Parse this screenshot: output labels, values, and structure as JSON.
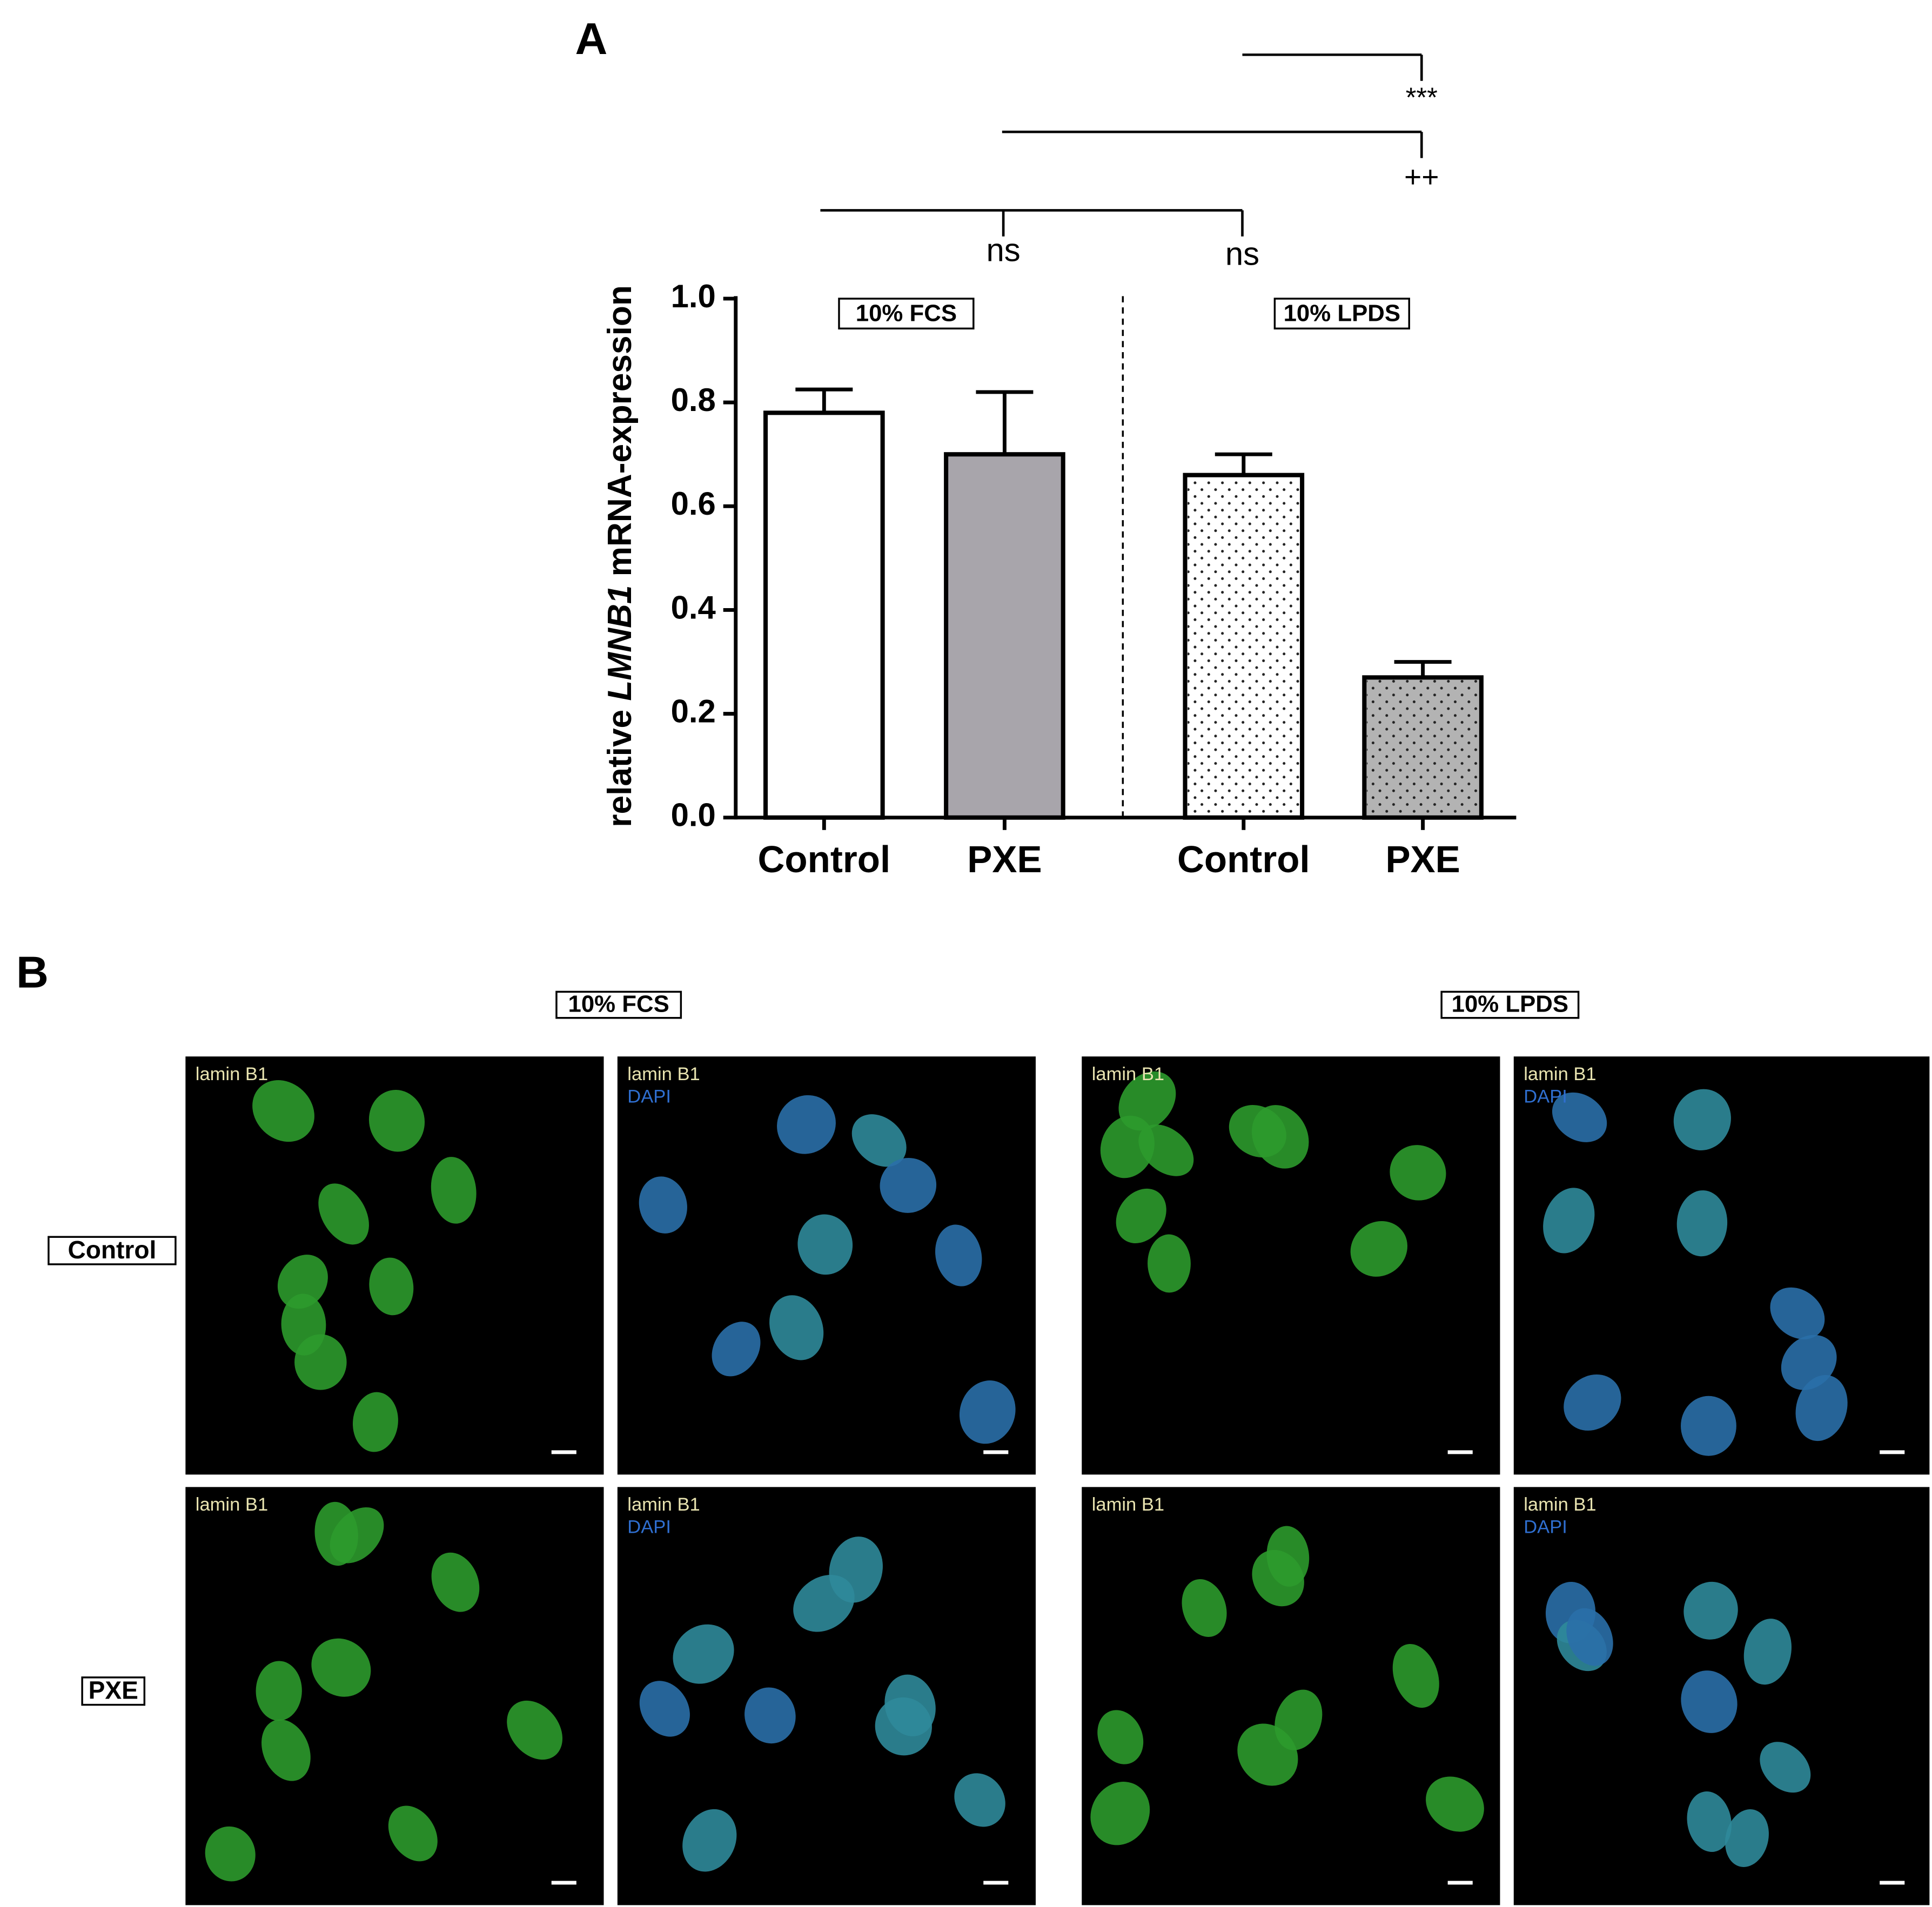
{
  "panel_a_label": "A",
  "chart_data": {
    "type": "bar",
    "y_label": {
      "prefix": "relative",
      "gene": "LMNB1",
      "suffix": "mRNA-expression"
    },
    "categories": [
      "Control",
      "PXE",
      "Control",
      "PXE"
    ],
    "values": [
      0.78,
      0.7,
      0.66,
      0.27
    ],
    "errors": [
      0.045,
      0.12,
      0.04,
      0.03
    ],
    "colors": [
      "#ffffff",
      "#a8a5ab",
      "#ffffff",
      "#b3b3b3"
    ],
    "dotted": [
      false,
      false,
      true,
      true
    ],
    "groups": [
      "10% FCS",
      "10% LPDS"
    ],
    "ylim": [
      0,
      1.0
    ],
    "yticks": [
      {
        "value": 0,
        "label": "0.0"
      },
      {
        "value": 0.2,
        "label": "0.2"
      },
      {
        "value": 0.4,
        "label": "0.4"
      },
      {
        "value": 0.6,
        "label": "0.6"
      },
      {
        "value": 0.8,
        "label": "0.8"
      },
      {
        "value": 1.0,
        "label": "1.0"
      }
    ],
    "annotations": [
      "ns",
      "ns",
      "++",
      "***"
    ]
  },
  "panel_b": {
    "label": "B",
    "conditions": [
      "10% FCS",
      "10% LPDS"
    ],
    "rows": [
      "Control",
      "PXE"
    ],
    "channels": [
      "lamin B1",
      "DAPI"
    ]
  }
}
